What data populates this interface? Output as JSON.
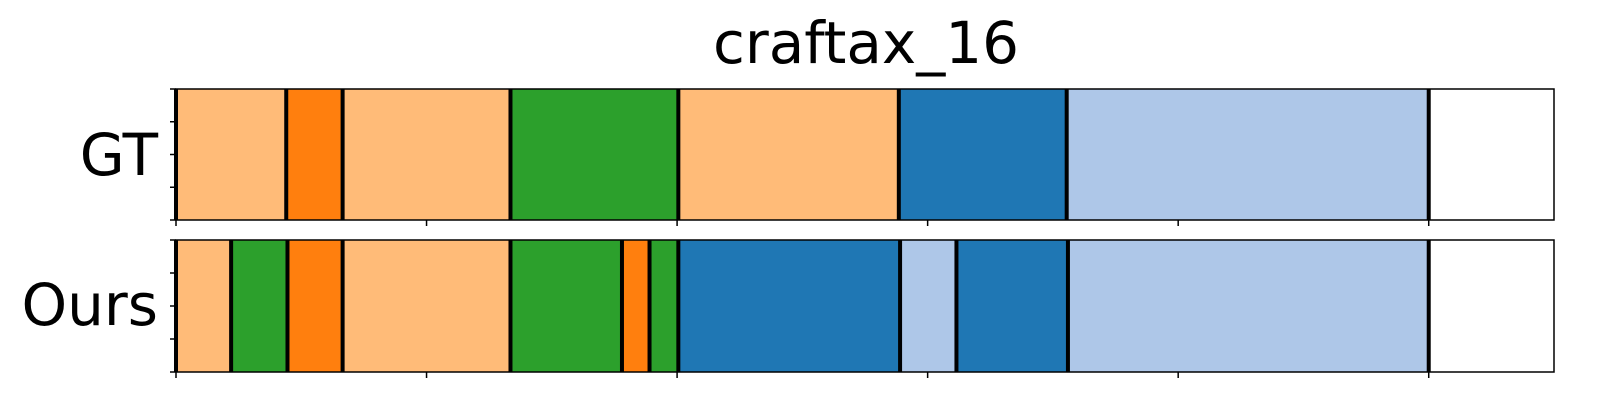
{
  "chart_data": {
    "type": "segmentation-timeline",
    "title": "craftax_16",
    "x_range": [
      0,
      1100
    ],
    "x_ticks": [
      0,
      200,
      400,
      600,
      800,
      1000
    ],
    "rows": [
      {
        "label": "GT",
        "segments": [
          {
            "start": 0,
            "end": 88,
            "color": "#ffbb78"
          },
          {
            "start": 88,
            "end": 133,
            "color": "#ff7f0e"
          },
          {
            "start": 133,
            "end": 267,
            "color": "#ffbb78"
          },
          {
            "start": 267,
            "end": 401,
            "color": "#2ca02c"
          },
          {
            "start": 401,
            "end": 577,
            "color": "#ffbb78"
          },
          {
            "start": 577,
            "end": 711,
            "color": "#1f77b4"
          },
          {
            "start": 711,
            "end": 1000,
            "color": "#aec7e8"
          }
        ],
        "boundaries": [
          0,
          88,
          133,
          267,
          401,
          577,
          711,
          1000
        ]
      },
      {
        "label": "Ours",
        "segments": [
          {
            "start": 0,
            "end": 44,
            "color": "#ffbb78"
          },
          {
            "start": 44,
            "end": 89,
            "color": "#2ca02c"
          },
          {
            "start": 89,
            "end": 133,
            "color": "#ff7f0e"
          },
          {
            "start": 133,
            "end": 267,
            "color": "#ffbb78"
          },
          {
            "start": 267,
            "end": 356,
            "color": "#2ca02c"
          },
          {
            "start": 356,
            "end": 378,
            "color": "#ff7f0e"
          },
          {
            "start": 378,
            "end": 401,
            "color": "#2ca02c"
          },
          {
            "start": 401,
            "end": 578,
            "color": "#1f77b4"
          },
          {
            "start": 578,
            "end": 623,
            "color": "#aec7e8"
          },
          {
            "start": 623,
            "end": 712,
            "color": "#1f77b4"
          },
          {
            "start": 712,
            "end": 1000,
            "color": "#aec7e8"
          }
        ],
        "boundaries": [
          0,
          44,
          89,
          133,
          267,
          356,
          378,
          401,
          578,
          623,
          712,
          1000
        ]
      }
    ]
  }
}
